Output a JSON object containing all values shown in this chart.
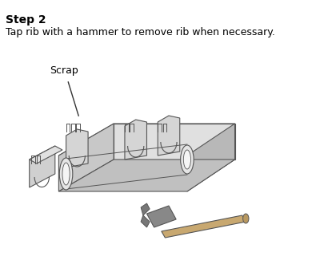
{
  "title": "Step 2",
  "subtitle": "Tap rib with a hammer to remove rib when necessary.",
  "label_scrap": "Scrap",
  "bg_color": "#ffffff",
  "text_color": "#000000",
  "title_fontsize": 10,
  "subtitle_fontsize": 9,
  "label_fontsize": 9,
  "title_bold": true,
  "fig_width": 4.0,
  "fig_height": 3.26,
  "dpi": 100
}
